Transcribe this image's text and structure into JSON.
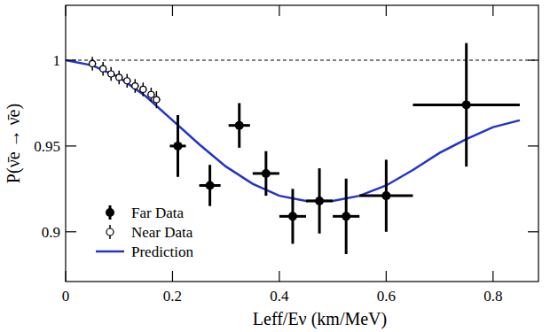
{
  "chart_data": {
    "type": "scatter",
    "x_label": "Leff/Eν (km/MeV)",
    "y_label": "P(ν̄e → ν̄e)",
    "xlim": [
      0,
      0.885
    ],
    "ylim": [
      0.871,
      1.032
    ],
    "xticks": [
      0,
      0.2,
      0.4,
      0.6,
      0.8
    ],
    "yticks": [
      0.9,
      0.95,
      1
    ],
    "legend": "lower left",
    "series": [
      {
        "type": "line",
        "line_style": "dashed",
        "color": "#000000",
        "x": [
          0,
          0.885
        ],
        "values": [
          1,
          1
        ]
      },
      {
        "name": "Prediction",
        "type": "line",
        "line_style": "solid",
        "color": "#2233cc",
        "x": [
          0,
          0.05,
          0.1,
          0.15,
          0.2,
          0.25,
          0.3,
          0.35,
          0.4,
          0.45,
          0.5,
          0.55,
          0.6,
          0.65,
          0.7,
          0.75,
          0.8,
          0.85
        ],
        "values": [
          1,
          0.997,
          0.99,
          0.979,
          0.965,
          0.951,
          0.938,
          0.928,
          0.921,
          0.918,
          0.918,
          0.921,
          0.927,
          0.936,
          0.946,
          0.954,
          0.961,
          0.965
        ]
      },
      {
        "name": "Near Data",
        "type": "scatter",
        "marker": "open_circle",
        "color": "#000000",
        "x": [
          0.05,
          0.07,
          0.085,
          0.1,
          0.115,
          0.13,
          0.145,
          0.16,
          0.17
        ],
        "values": [
          0.998,
          0.995,
          0.992,
          0.99,
          0.988,
          0.985,
          0.983,
          0.98,
          0.977
        ],
        "x_errors": [
          0.007,
          0.007,
          0.007,
          0.007,
          0.007,
          0.007,
          0.007,
          0.007,
          0.007
        ],
        "errors": [
          0.004,
          0.004,
          0.004,
          0.004,
          0.004,
          0.004,
          0.004,
          0.004,
          0.005
        ]
      },
      {
        "name": "Far Data",
        "type": "scatter",
        "marker": "circle",
        "color": "#000000",
        "x": [
          0.21,
          0.27,
          0.325,
          0.375,
          0.425,
          0.475,
          0.525,
          0.6,
          0.75
        ],
        "values": [
          0.95,
          0.927,
          0.962,
          0.934,
          0.909,
          0.918,
          0.909,
          0.921,
          0.974
        ],
        "x_errors": [
          0.015,
          0.02,
          0.02,
          0.025,
          0.025,
          0.025,
          0.025,
          0.05,
          0.1
        ],
        "errors": [
          0.018,
          0.012,
          0.013,
          0.013,
          0.016,
          0.019,
          0.022,
          0.021,
          0.036
        ]
      }
    ]
  }
}
